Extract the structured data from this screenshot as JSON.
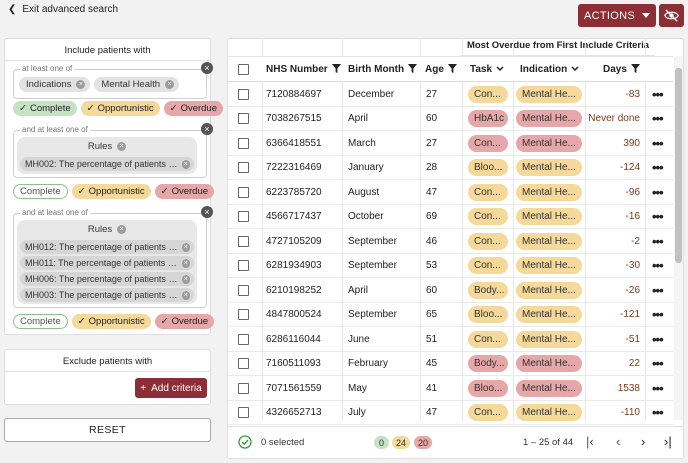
{
  "topbar": {
    "exit_label": "Exit advanced search",
    "actions_label": "ACTIONS"
  },
  "include": {
    "title": "Include patients with",
    "group1": {
      "label": "at least one of",
      "chips": [
        "Indications",
        "Mental Health"
      ],
      "statuses": [
        "Complete",
        "Opportunistic",
        "Overdue"
      ]
    },
    "group2": {
      "label": "and at least one of",
      "rules_label": "Rules",
      "rules": [
        "MH002: The percentage of patients with…"
      ],
      "statuses": [
        "Complete",
        "Opportunistic",
        "Overdue"
      ]
    },
    "group3": {
      "label": "and at least one of",
      "rules_label": "Rules",
      "rules": [
        "MH012: The percentage of patients with…",
        "MH011: The percentage of patients with…",
        "MH006: The percentage of patients with…",
        "MH003: The percentage of patients with…"
      ],
      "statuses": [
        "Complete",
        "Opportunistic",
        "Overdue"
      ]
    }
  },
  "exclude": {
    "title": "Exclude patients with",
    "add_label": "Add criteria"
  },
  "reset_label": "RESET",
  "table": {
    "group_header": "Most Overdue from First Include Criteria",
    "columns": {
      "nhs": "NHS Number",
      "birth": "Birth Month",
      "age": "Age",
      "task": "Task",
      "indication": "Indication",
      "days": "Days"
    },
    "rows": [
      {
        "nhs": "7120884697",
        "birth": "December",
        "age": "27",
        "task": "Con...",
        "task_s": "opp",
        "ind": "Mental He...",
        "ind_s": "opp",
        "days": "-83"
      },
      {
        "nhs": "7038267515",
        "birth": "April",
        "age": "60",
        "task": "HbA1c",
        "task_s": "over",
        "ind": "Mental He...",
        "ind_s": "over",
        "days": "Never done"
      },
      {
        "nhs": "6366418551",
        "birth": "March",
        "age": "27",
        "task": "Con...",
        "task_s": "over",
        "ind": "Mental He...",
        "ind_s": "over",
        "days": "390"
      },
      {
        "nhs": "7222316469",
        "birth": "January",
        "age": "28",
        "task": "Bloo...",
        "task_s": "opp",
        "ind": "Mental He...",
        "ind_s": "opp",
        "days": "-124"
      },
      {
        "nhs": "6223785720",
        "birth": "August",
        "age": "47",
        "task": "Con...",
        "task_s": "opp",
        "ind": "Mental He...",
        "ind_s": "opp",
        "days": "-96"
      },
      {
        "nhs": "4566717437",
        "birth": "October",
        "age": "69",
        "task": "Con...",
        "task_s": "opp",
        "ind": "Mental He...",
        "ind_s": "opp",
        "days": "-16"
      },
      {
        "nhs": "4727105209",
        "birth": "September",
        "age": "46",
        "task": "Con...",
        "task_s": "opp",
        "ind": "Mental He...",
        "ind_s": "opp",
        "days": "-2"
      },
      {
        "nhs": "6281934903",
        "birth": "September",
        "age": "53",
        "task": "Con...",
        "task_s": "opp",
        "ind": "Mental He...",
        "ind_s": "opp",
        "days": "-30"
      },
      {
        "nhs": "6210198252",
        "birth": "April",
        "age": "60",
        "task": "Body...",
        "task_s": "opp",
        "ind": "Mental He...",
        "ind_s": "opp",
        "days": "-26"
      },
      {
        "nhs": "4847800524",
        "birth": "September",
        "age": "65",
        "task": "Bloo...",
        "task_s": "opp",
        "ind": "Mental He...",
        "ind_s": "opp",
        "days": "-121"
      },
      {
        "nhs": "6286116044",
        "birth": "June",
        "age": "51",
        "task": "Con...",
        "task_s": "opp",
        "ind": "Mental He...",
        "ind_s": "opp",
        "days": "-51"
      },
      {
        "nhs": "7160511093",
        "birth": "February",
        "age": "45",
        "task": "Body...",
        "task_s": "over",
        "ind": "Mental He...",
        "ind_s": "over",
        "days": "22"
      },
      {
        "nhs": "7071561559",
        "birth": "May",
        "age": "41",
        "task": "Bloo...",
        "task_s": "over",
        "ind": "Mental He...",
        "ind_s": "over",
        "days": "1538"
      },
      {
        "nhs": "4326652713",
        "birth": "July",
        "age": "47",
        "task": "Con...",
        "task_s": "opp",
        "ind": "Mental He...",
        "ind_s": "opp",
        "days": "-110"
      }
    ]
  },
  "footer": {
    "selected": "0 selected",
    "complete_count": "0",
    "opportunistic_count": "24",
    "overdue_count": "20",
    "range": "1 – 25 of 44"
  },
  "colors": {
    "accent": "#8b2e35",
    "complete": "#c4e3c4",
    "opportunistic": "#f4d99a",
    "overdue": "#e6a7a8"
  }
}
